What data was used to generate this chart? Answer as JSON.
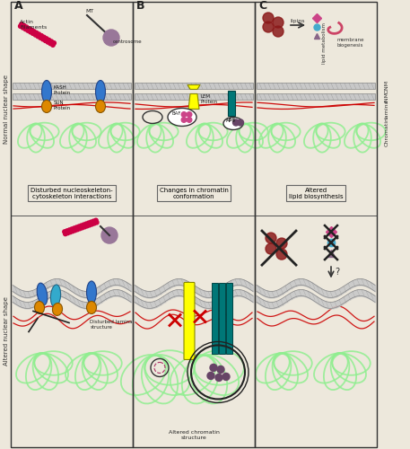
{
  "bg_color": "#ede8dc",
  "border_color": "#333333",
  "panel_labels": [
    "A",
    "B",
    "C"
  ],
  "label_normal": "Normal nuclear shape",
  "label_altered": "Altered nuclear shape",
  "right_labels_normal": [
    "ONM",
    "INM",
    "lamina",
    "Chromatin"
  ],
  "membrane_color": "#888888",
  "membrane_fill": "#c8c8c8",
  "lamin_color": "#cc0000",
  "chromatin_color": "#90ee90",
  "kash_color": "#3377cc",
  "sun_color": "#dd8800",
  "lem_color": "#ffff00",
  "lbr_color": "#007777",
  "baf_pink": "#cc4488",
  "hp1_purple": "#664466",
  "actin_color": "#cc0044",
  "centrosome_color": "#997799",
  "mt_color": "#333333",
  "box_A": "Disturbed nucleoskeleton-\ncytoskeleton interactions",
  "box_B": "Changes in chromatin\nconformation",
  "box_C": "Altered\nlipid biosynthesis",
  "disturbed_A": "Disturbed lamina\nstructure",
  "altered_B": "Altered chromatin\nstructure",
  "lipins_label": "lipins",
  "lipid_metabolism": "lipid metabolism",
  "membrane_biogenesis": "membrane\nbiogenesis"
}
